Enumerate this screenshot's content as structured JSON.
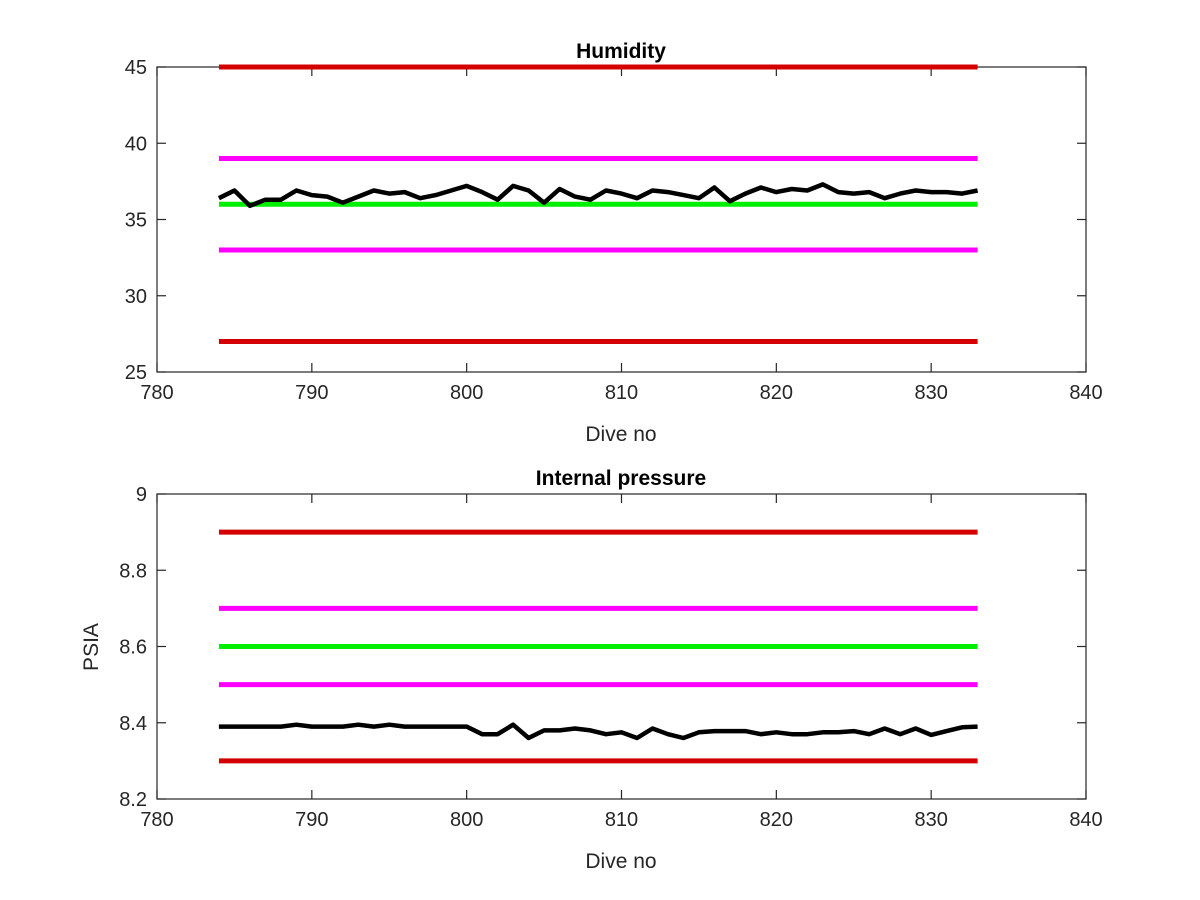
{
  "colors": {
    "outer_limit": "#d40000",
    "inner_limit": "#ff00ff",
    "nominal": "#00ee00",
    "measurement": "#000000"
  },
  "chart_data": [
    {
      "type": "line",
      "title": "Humidity",
      "xlabel": "Dive no",
      "ylabel": "",
      "xlim": [
        780,
        840
      ],
      "ylim": [
        25,
        45
      ],
      "xticks": [
        "780",
        "790",
        "800",
        "810",
        "820",
        "830",
        "840"
      ],
      "yticks": [
        "25",
        "30",
        "35",
        "40",
        "45"
      ],
      "grid": false,
      "legend": "none",
      "reference_lines": [
        {
          "role": "outer_limit",
          "x": [
            784,
            833
          ],
          "y": 45
        },
        {
          "role": "inner_limit",
          "x": [
            784,
            833
          ],
          "y": 39
        },
        {
          "role": "nominal",
          "x": [
            784,
            833
          ],
          "y": 36
        },
        {
          "role": "inner_limit",
          "x": [
            784,
            833
          ],
          "y": 33
        },
        {
          "role": "outer_limit",
          "x": [
            784,
            833
          ],
          "y": 27
        }
      ],
      "series": [
        {
          "role": "measurement",
          "x": [
            784,
            785,
            786,
            787,
            788,
            789,
            790,
            791,
            792,
            793,
            794,
            795,
            796,
            797,
            798,
            799,
            800,
            801,
            802,
            803,
            804,
            805,
            806,
            807,
            808,
            809,
            810,
            811,
            812,
            813,
            814,
            815,
            816,
            817,
            818,
            819,
            820,
            821,
            822,
            823,
            824,
            825,
            826,
            827,
            828,
            829,
            830,
            831,
            832,
            833
          ],
          "values": [
            36.4,
            36.9,
            35.9,
            36.3,
            36.3,
            36.9,
            36.6,
            36.5,
            36.1,
            36.5,
            36.9,
            36.7,
            36.8,
            36.4,
            36.6,
            36.9,
            37.2,
            36.8,
            36.3,
            37.2,
            36.9,
            36.1,
            37.0,
            36.5,
            36.3,
            36.9,
            36.7,
            36.4,
            36.9,
            36.8,
            36.6,
            36.4,
            37.1,
            36.2,
            36.7,
            37.1,
            36.8,
            37.0,
            36.9,
            37.3,
            36.8,
            36.7,
            36.8,
            36.4,
            36.7,
            36.9,
            36.8,
            36.8,
            36.7,
            36.9
          ]
        }
      ]
    },
    {
      "type": "line",
      "title": "Internal pressure",
      "xlabel": "Dive no",
      "ylabel": "PSIA",
      "xlim": [
        780,
        840
      ],
      "ylim": [
        8.2,
        9
      ],
      "xticks": [
        "780",
        "790",
        "800",
        "810",
        "820",
        "830",
        "840"
      ],
      "yticks": [
        "8.2",
        "8.4",
        "8.6",
        "8.8",
        "9"
      ],
      "grid": false,
      "legend": "none",
      "reference_lines": [
        {
          "role": "outer_limit",
          "x": [
            784,
            833
          ],
          "y": 8.9
        },
        {
          "role": "inner_limit",
          "x": [
            784,
            833
          ],
          "y": 8.7
        },
        {
          "role": "nominal",
          "x": [
            784,
            833
          ],
          "y": 8.6
        },
        {
          "role": "inner_limit",
          "x": [
            784,
            833
          ],
          "y": 8.5
        },
        {
          "role": "outer_limit",
          "x": [
            784,
            833
          ],
          "y": 8.3
        }
      ],
      "series": [
        {
          "role": "measurement",
          "x": [
            784,
            785,
            786,
            787,
            788,
            789,
            790,
            791,
            792,
            793,
            794,
            795,
            796,
            797,
            798,
            799,
            800,
            801,
            802,
            803,
            804,
            805,
            806,
            807,
            808,
            809,
            810,
            811,
            812,
            813,
            814,
            815,
            816,
            817,
            818,
            819,
            820,
            821,
            822,
            823,
            824,
            825,
            826,
            827,
            828,
            829,
            830,
            831,
            832,
            833
          ],
          "values": [
            8.39,
            8.39,
            8.39,
            8.39,
            8.39,
            8.395,
            8.39,
            8.39,
            8.39,
            8.395,
            8.39,
            8.395,
            8.39,
            8.39,
            8.39,
            8.39,
            8.39,
            8.37,
            8.37,
            8.395,
            8.36,
            8.38,
            8.38,
            8.385,
            8.38,
            8.37,
            8.375,
            8.36,
            8.385,
            8.37,
            8.36,
            8.375,
            8.378,
            8.378,
            8.378,
            8.37,
            8.375,
            8.37,
            8.37,
            8.375,
            8.375,
            8.378,
            8.37,
            8.385,
            8.37,
            8.385,
            8.368,
            8.378,
            8.388,
            8.39
          ]
        }
      ]
    }
  ]
}
